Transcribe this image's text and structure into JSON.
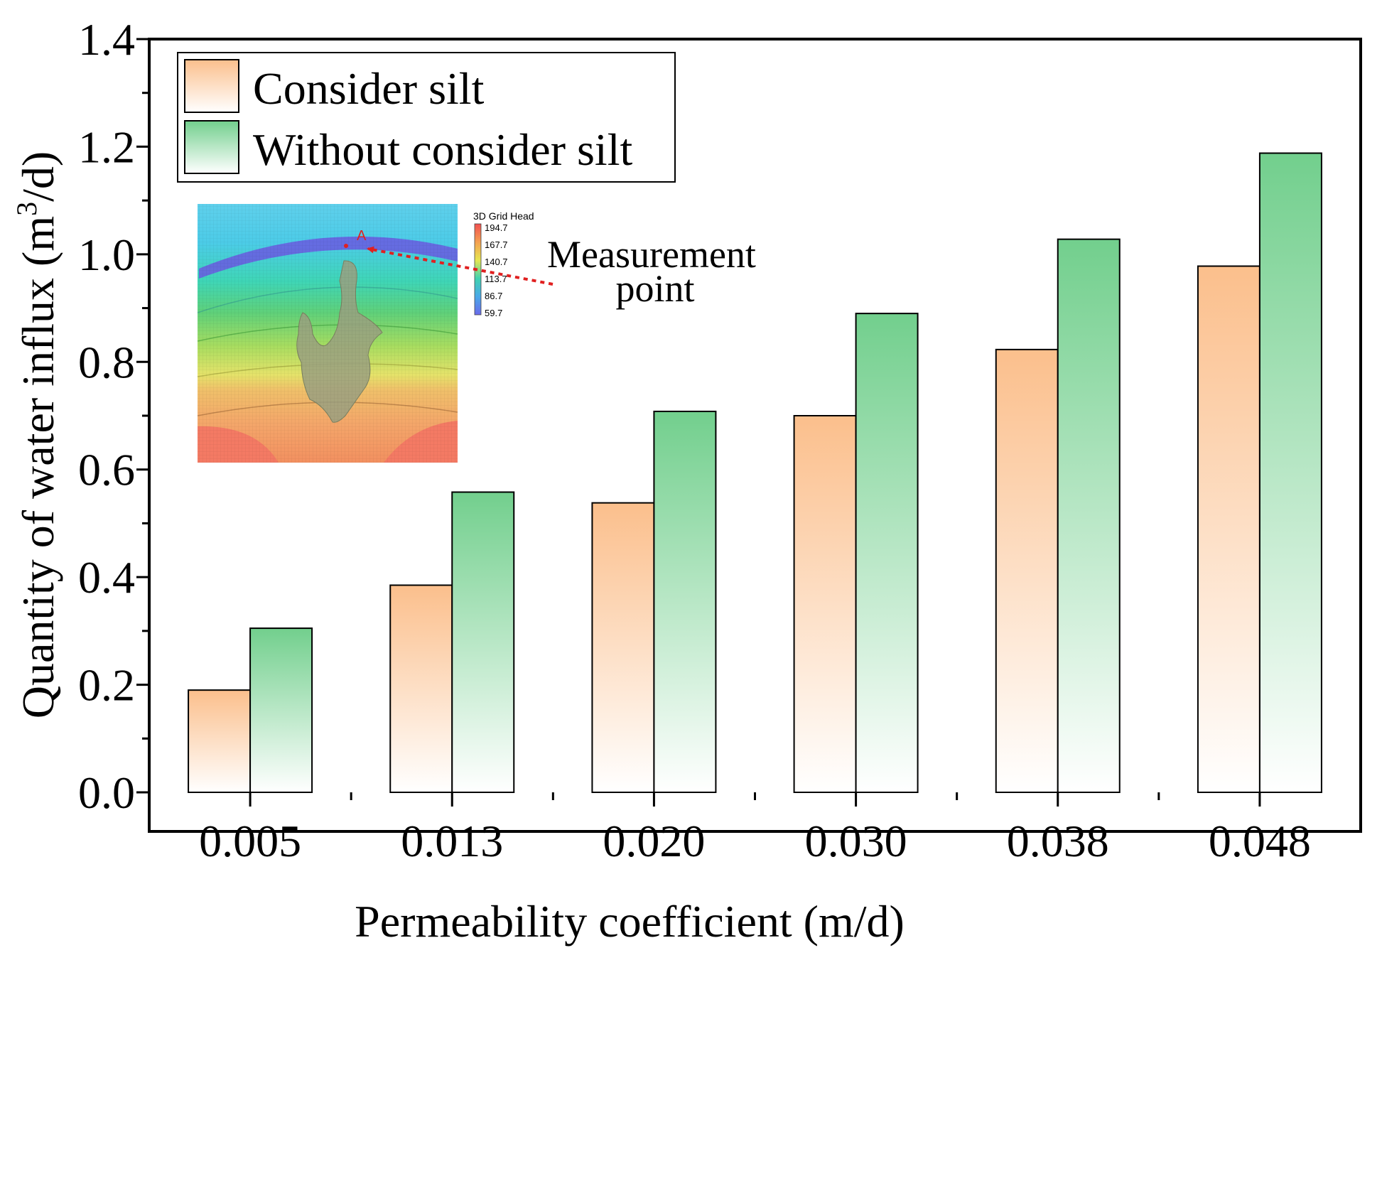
{
  "chart_data": {
    "type": "bar",
    "xlabel": "Permeability coefficient (m/d)",
    "ylabel_prefix": "Quantity of water influx (m",
    "ylabel_sup": "3",
    "ylabel_suffix": "/d)",
    "categories": [
      "0.005",
      "0.013",
      "0.020",
      "0.030",
      "0.038",
      "0.048"
    ],
    "ylim": [
      0,
      1.4
    ],
    "yticks": [
      "0.0",
      "0.2",
      "0.4",
      "0.6",
      "0.8",
      "1.0",
      "1.2",
      "1.4"
    ],
    "grid": false,
    "legend_position": "top-left",
    "series": [
      {
        "name": "Consider silt",
        "values": [
          0.19,
          0.385,
          0.538,
          0.7,
          0.823,
          0.978
        ],
        "color": "#fbbf8c"
      },
      {
        "name": "Without consider silt",
        "values": [
          0.305,
          0.558,
          0.708,
          0.89,
          1.028,
          1.188
        ],
        "color": "#72cf8d"
      }
    ],
    "annotation": "Measurement point",
    "annotation_line1": "Measurement",
    "annotation_line2": "point"
  },
  "inset": {
    "title": "3D Grid Head",
    "point_label": "A",
    "legend_values": [
      "194.7",
      "167.7",
      "140.7",
      "113.7",
      "86.7",
      "59.7"
    ]
  }
}
